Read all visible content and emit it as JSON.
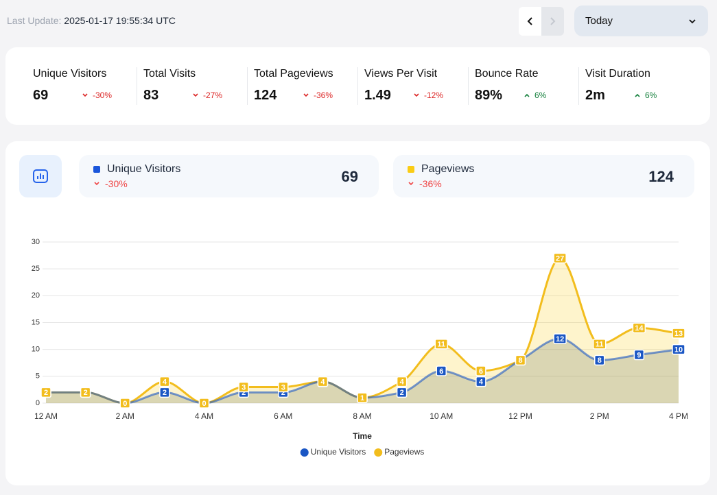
{
  "header": {
    "last_update_label": "Last Update:",
    "last_update": "2025-01-17 19:55:34 UTC",
    "period": "Today"
  },
  "stats": [
    {
      "label": "Unique Visitors",
      "value": "69",
      "change": "-30%"
    },
    {
      "label": "Total Visits",
      "value": "83",
      "change": "-27%"
    },
    {
      "label": "Total Pageviews",
      "value": "124",
      "change": "-36%"
    },
    {
      "label": "Views Per Visit",
      "value": "1.49",
      "change": "-12%"
    },
    {
      "label": "Bounce Rate",
      "value": "89%",
      "change": "6%"
    },
    {
      "label": "Visit Duration",
      "value": "2m",
      "change": "6%"
    }
  ],
  "summary_cards": [
    {
      "name": "Unique Visitors",
      "change": "-30%",
      "value": "69",
      "color": "#1a56db"
    },
    {
      "name": "Pageviews",
      "change": "-36%",
      "value": "124",
      "color": "#facc15"
    }
  ],
  "chart_data": {
    "type": "area",
    "x_label": "Time",
    "categories": [
      "12 AM",
      null,
      "2 AM",
      null,
      "4 AM",
      null,
      "6 AM",
      null,
      "8 AM",
      null,
      "10 AM",
      null,
      "12 PM",
      null,
      "2 PM",
      null,
      "4 PM"
    ],
    "series": [
      {
        "name": "Unique Visitors",
        "color": "#1a56c4",
        "values": [
          2,
          2,
          0,
          2,
          0,
          2,
          2,
          4,
          1,
          2,
          6,
          4,
          8,
          12,
          8,
          9,
          10
        ]
      },
      {
        "name": "Pageviews",
        "color": "#f2bd1d",
        "values": [
          2,
          2,
          0,
          4,
          0,
          3,
          3,
          4,
          1,
          4,
          11,
          6,
          8,
          27,
          11,
          14,
          13
        ]
      }
    ],
    "ylim": [
      0,
      30
    ],
    "yticks": [
      0,
      5,
      10,
      15,
      20,
      25,
      30
    ],
    "grid": true,
    "legend": "bottom"
  }
}
